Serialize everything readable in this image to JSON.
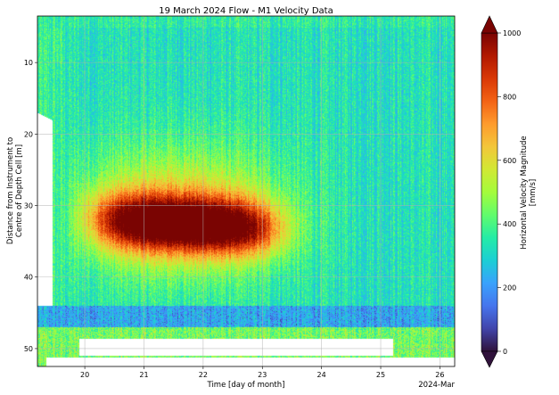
{
  "chart_data": {
    "type": "heatmap",
    "title": "19 March 2024 Flow - M1 Velocity Data",
    "xlabel": "Time [day of month]",
    "ylabel_lines": [
      "Distance from Instrument to",
      "Centre of Depth Cell [m]"
    ],
    "x_offset_label": "2024-Mar",
    "xlim": [
      19.2,
      26.25
    ],
    "ylim": [
      52.5,
      3.5
    ],
    "x_ticks": [
      20,
      21,
      22,
      23,
      24,
      25,
      26
    ],
    "x_tick_labels": [
      "20",
      "21",
      "22",
      "23",
      "24",
      "25",
      "26"
    ],
    "y_ticks": [
      10,
      20,
      30,
      40,
      50
    ],
    "y_tick_labels": [
      "10",
      "20",
      "30",
      "40",
      "50"
    ],
    "grid": true,
    "colorbar": {
      "label_lines": [
        "Horizontal Velocity Magnitude",
        "[mm/s]"
      ],
      "colormap": "turbo",
      "range": [
        0,
        1000
      ],
      "ticks": [
        0,
        200,
        400,
        600,
        800,
        1000
      ],
      "tick_labels": [
        "0",
        "200",
        "400",
        "600",
        "800",
        "1000"
      ],
      "extend": "both"
    },
    "field": {
      "description_model": "velocity core between depth 28 and 38 m peaking near day 21.5",
      "background_mm_s": 330,
      "core_peak_mm_s": 1000,
      "core_center_depth_m": 32.5,
      "core_time_span_days": [
        19.7,
        24.3
      ],
      "near_bed_band_depth_m": [
        44,
        47
      ],
      "near_bed_band_mm_s": 220,
      "lowest_rows_mm_s": 450
    },
    "colormap_stops": [
      "#30123b",
      "#4145ab",
      "#4675ed",
      "#39a2fc",
      "#1bcfd4",
      "#24eca6",
      "#61fc6c",
      "#a4fc3b",
      "#d1e834",
      "#f3c63a",
      "#fe9b2d",
      "#f36315",
      "#d93806",
      "#b11901",
      "#7a0402"
    ]
  }
}
